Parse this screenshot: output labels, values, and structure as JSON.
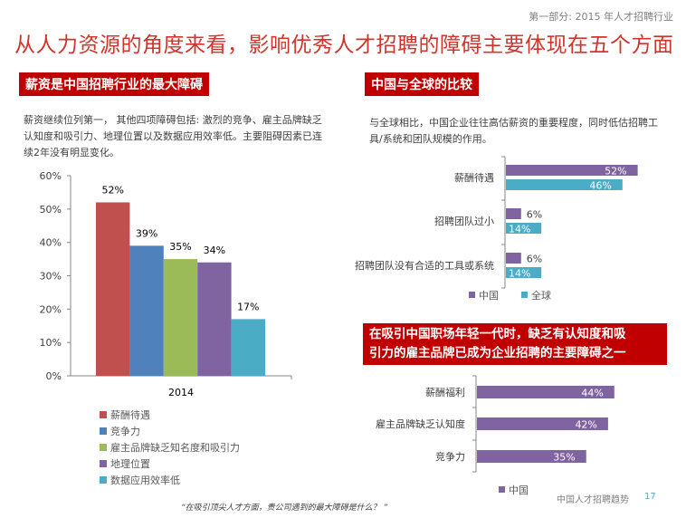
{
  "header": {
    "section": "第一部分: 2015 年人才招聘行业",
    "title": "从人力资源的角度来看，影响优秀人才招聘的障碍主要体现在五个方面"
  },
  "left_panel": {
    "heading": "薪资是中国招聘行业的最大障碍",
    "description": "薪资继续位列第一， 其他四项障碍包括: 激烈的竞争、雇主品牌缺乏认知度和吸引力、地理位置以及数据应用效率低。主要阻碍因素已连续2年没有明显变化。"
  },
  "right_top_panel": {
    "heading": "中国与全球的比较",
    "description": "与全球相比，中国企业往往高估薪资的重要程度，同时低估招聘工具/系统和团队规模的作用。"
  },
  "right_bottom_panel": {
    "heading_line1": "在吸引中国职场年轻一代时，缺乏有认知度和吸",
    "heading_line2": "引力的雇主品牌已成为企业招聘的主要障碍之一"
  },
  "footer": {
    "quote": "“在吸引顶尖人才方面，贵公司遇到的最大障碍是什么？ ”",
    "brand": "中国人才招聘趋势",
    "page": "17"
  },
  "chart_data": [
    {
      "type": "bar",
      "title": "",
      "categories": [
        "2014"
      ],
      "series": [
        {
          "name": "薪酬待遇",
          "values": [
            52
          ],
          "label": "52%",
          "color": "#c0504d"
        },
        {
          "name": "竞争力",
          "values": [
            39
          ],
          "label": "39%",
          "color": "#4f81bd"
        },
        {
          "name": "雇主品牌缺乏知名度和吸引力",
          "values": [
            35
          ],
          "label": "35%",
          "color": "#9bbb59"
        },
        {
          "name": "地理位置",
          "values": [
            34
          ],
          "label": "34%",
          "color": "#8064a2"
        },
        {
          "name": "数据应用效率低",
          "values": [
            17
          ],
          "label": "17%",
          "color": "#4bacc6"
        }
      ],
      "ylim": [
        0,
        60
      ],
      "yticks": [
        "0%",
        "10%",
        "20%",
        "30%",
        "40%",
        "50%",
        "60%"
      ],
      "xlabel": "",
      "ylabel": "",
      "legend": "bottom"
    },
    {
      "type": "bar",
      "orientation": "horizontal",
      "title": "",
      "categories": [
        "薪酬待遇",
        "招聘团队过小",
        "招聘团队没有合适的工具或系统"
      ],
      "series": [
        {
          "name": "中国",
          "values": [
            52,
            6,
            6
          ],
          "labels": [
            "52%",
            "6%",
            "6%"
          ],
          "color": "#8064a2"
        },
        {
          "name": "全球",
          "values": [
            46,
            14,
            14
          ],
          "labels": [
            "46%",
            "14%",
            "14%"
          ],
          "color": "#4bacc6"
        }
      ],
      "xlim": [
        0,
        60
      ],
      "legend": "bottom"
    },
    {
      "type": "bar",
      "orientation": "horizontal",
      "title": "",
      "categories": [
        "薪酬福利",
        "雇主品牌缺乏认知度",
        "竞争力"
      ],
      "series": [
        {
          "name": "中国",
          "values": [
            44,
            42,
            35
          ],
          "labels": [
            "44%",
            "42%",
            "35%"
          ],
          "color": "#8064a2"
        }
      ],
      "xlim": [
        0,
        60
      ],
      "legend": "bottom"
    }
  ]
}
